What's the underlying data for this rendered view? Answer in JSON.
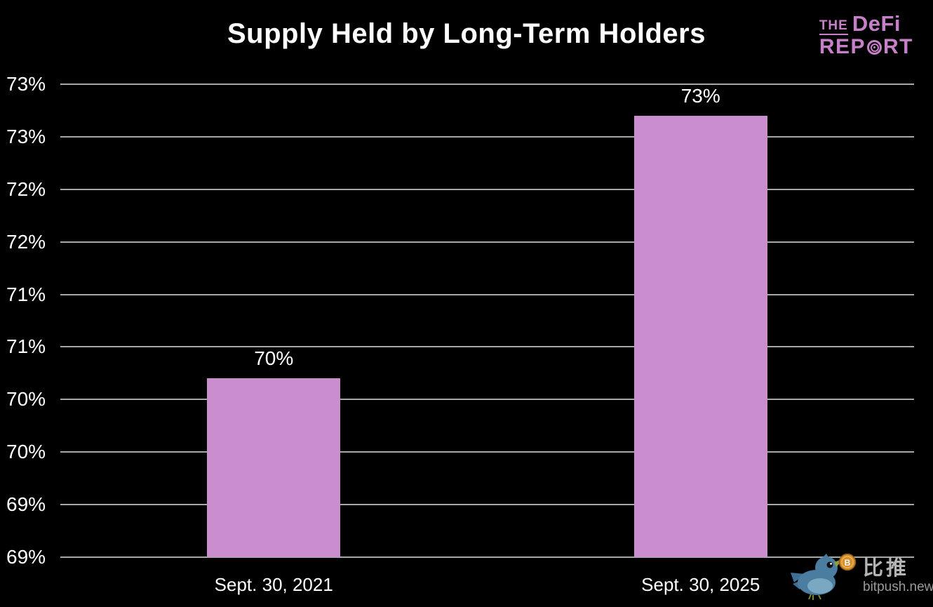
{
  "logo": {
    "the": "THE",
    "defi": "DeFi",
    "rep": "REP",
    "rt": "RT",
    "color": "#c77fc9"
  },
  "watermark": {
    "cn": "比推",
    "site": "bitpush.news"
  },
  "chart_data": {
    "type": "bar",
    "title": "Supply Held by Long-Term Holders",
    "categories": [
      "Sept. 30, 2021",
      "Sept. 30, 2025"
    ],
    "values": [
      70.2,
      72.7
    ],
    "data_labels": [
      "70%",
      "73%"
    ],
    "bar_color": "#ca8dce",
    "grid_color": "#a8a8a8",
    "background_color": "#000000",
    "text_color": "#ffffff",
    "xlabel": "",
    "ylabel": "",
    "ylim": [
      68.5,
      73
    ],
    "grid": true,
    "legend": false,
    "y_ticks": [
      {
        "value": 73.0,
        "label": "73%"
      },
      {
        "value": 72.5,
        "label": "73%"
      },
      {
        "value": 72.0,
        "label": "72%"
      },
      {
        "value": 71.5,
        "label": "72%"
      },
      {
        "value": 71.0,
        "label": "71%"
      },
      {
        "value": 70.5,
        "label": "71%"
      },
      {
        "value": 70.0,
        "label": "70%"
      },
      {
        "value": 69.5,
        "label": "70%"
      },
      {
        "value": 69.0,
        "label": "69%"
      },
      {
        "value": 68.5,
        "label": "69%"
      }
    ]
  }
}
